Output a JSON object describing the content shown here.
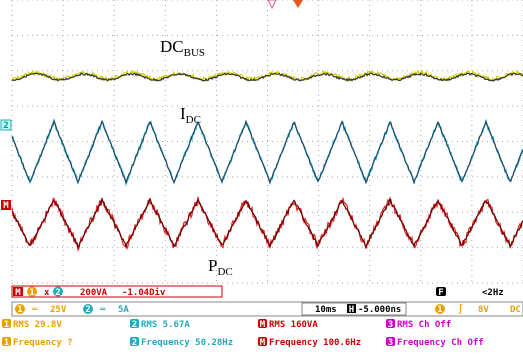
{
  "plot_labels": {
    "dc_bus": {
      "main": "DC",
      "sub": "BUS"
    },
    "i_dc": {
      "main": "I",
      "sub": "DC"
    },
    "p_dc": {
      "main": "P",
      "sub": "DC"
    }
  },
  "side_markers": [
    "2",
    "M"
  ],
  "math_bar": {
    "badge": "M",
    "source_a": "1",
    "operator": "x",
    "source_b": "2",
    "scale": "200VA",
    "offset": "-1.04Div"
  },
  "channel_bar": {
    "ch1": "1",
    "ch1_coupling": "═",
    "ch1_scale": "25V",
    "ch2": "2",
    "ch2_coupling": "═",
    "ch2_scale": "5A",
    "timebase": "10ms",
    "h_badge": "H",
    "h_position": "-5.000ns",
    "f_badge": "F",
    "freq": "<2Hz",
    "trig_ch": "1",
    "trig_slope": "∫",
    "trig_level": "8V",
    "trig_coupling": "DC"
  },
  "measurements": [
    {
      "channel": "1",
      "rms": "RMS 29.8V",
      "frequency": "Frequency ?"
    },
    {
      "channel": "2",
      "rms": "RMS 5.67A",
      "frequency": "Frequency 50.28Hz"
    },
    {
      "channel": "M",
      "rms": "RMS 160VA",
      "frequency": "Frequency 100.6Hz"
    },
    {
      "channel": "3",
      "rms": "RMS Ch Off",
      "frequency": "Frequency Ch Off"
    }
  ]
}
